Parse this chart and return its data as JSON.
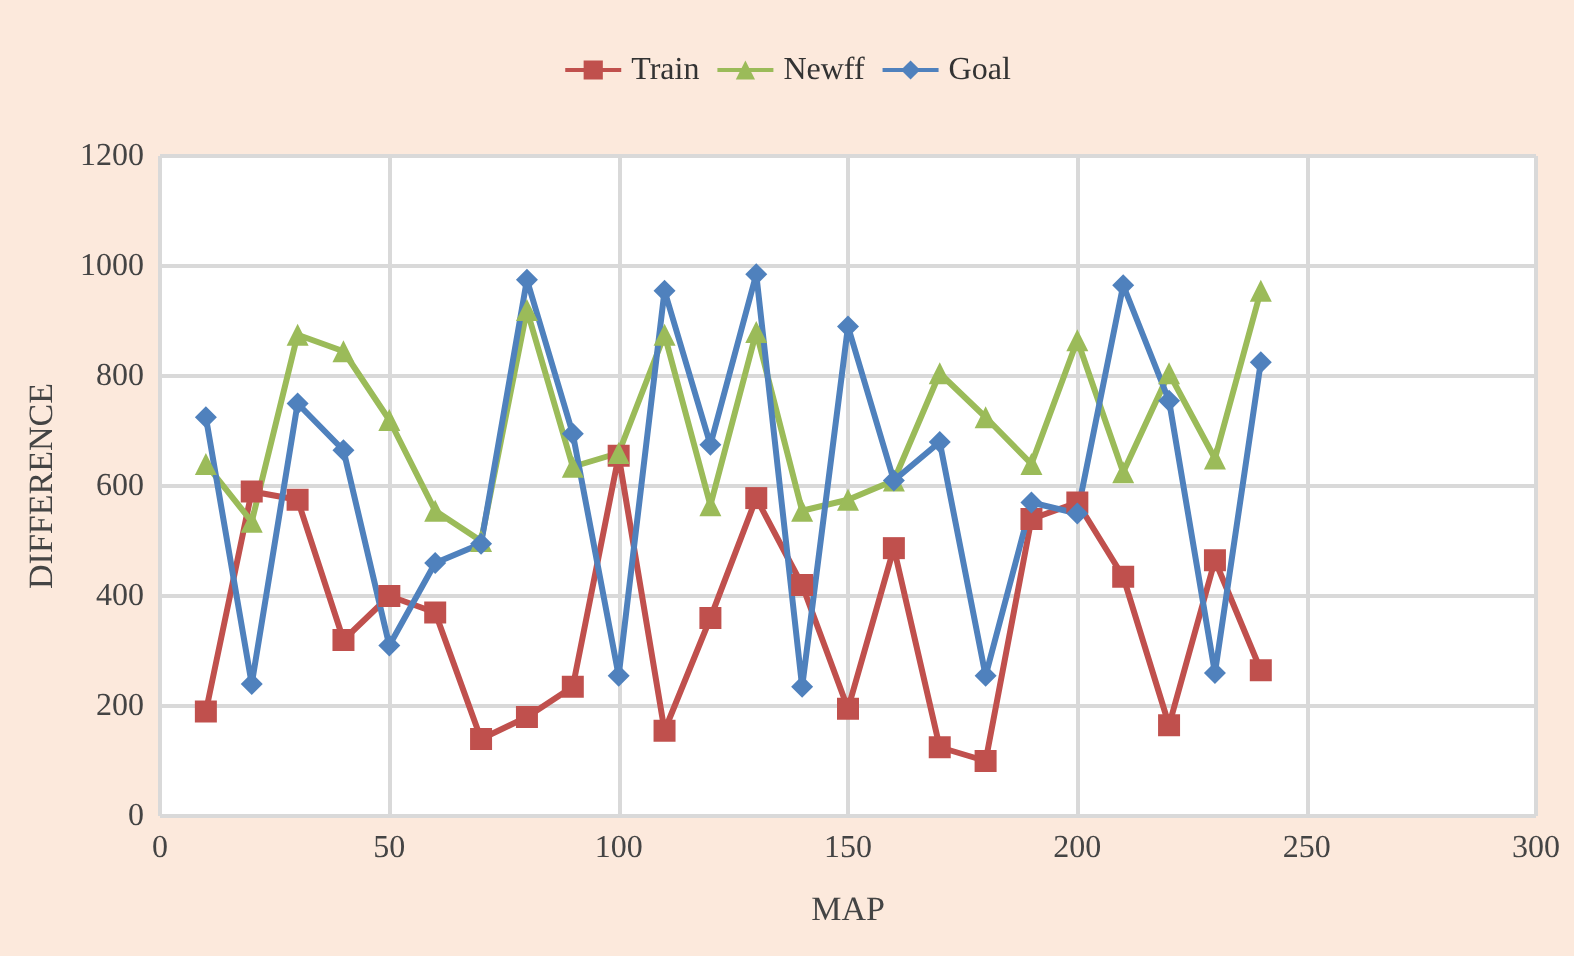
{
  "chart_data": {
    "type": "line",
    "xlabel": "MAP",
    "ylabel": "DIFFERENCE",
    "x": [
      10,
      20,
      30,
      40,
      50,
      60,
      70,
      80,
      90,
      100,
      110,
      120,
      130,
      140,
      150,
      160,
      170,
      180,
      190,
      200,
      210,
      220,
      230,
      240
    ],
    "series": [
      {
        "name": "Train",
        "color": "#c0504d",
        "marker": "square",
        "values": [
          190,
          590,
          575,
          320,
          400,
          370,
          140,
          180,
          235,
          655,
          155,
          360,
          578,
          420,
          195,
          487,
          125,
          100,
          540,
          570,
          435,
          165,
          465,
          265
        ]
      },
      {
        "name": "Newff",
        "color": "#9bbb59",
        "marker": "triangle",
        "values": [
          640,
          535,
          875,
          845,
          720,
          555,
          500,
          920,
          635,
          660,
          875,
          565,
          880,
          555,
          575,
          610,
          805,
          725,
          640,
          865,
          625,
          805,
          650,
          955
        ]
      },
      {
        "name": "Goal",
        "color": "#4f81bd",
        "marker": "diamond",
        "values": [
          725,
          240,
          750,
          665,
          310,
          460,
          495,
          975,
          695,
          255,
          955,
          675,
          985,
          235,
          890,
          610,
          680,
          255,
          570,
          550,
          965,
          755,
          260,
          825
        ]
      }
    ],
    "xlim": [
      0,
      300
    ],
    "xticks": [
      0,
      50,
      100,
      150,
      200,
      250,
      300
    ],
    "ylim": [
      0,
      1200
    ],
    "yticks": [
      0,
      200,
      400,
      600,
      800,
      1000,
      1200
    ],
    "grid": true,
    "legend": "top",
    "line_style": "solid"
  }
}
